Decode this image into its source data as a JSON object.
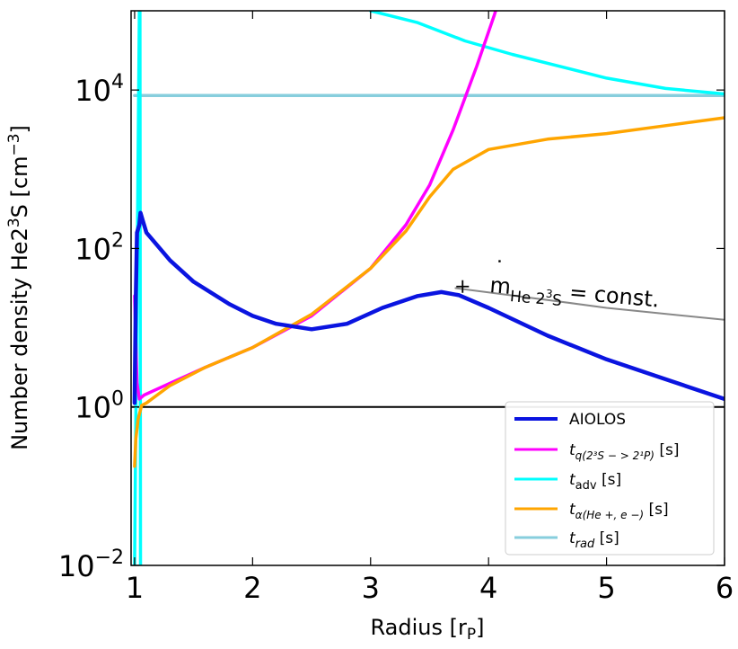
{
  "chart_data": {
    "type": "line",
    "xlabel": "Radius [r",
    "xlabel_sub": "P",
    "xlabel_end": "]",
    "ylabel": "Number density He2",
    "ylabel_sup": "3",
    "ylabel_mid": "S [cm",
    "ylabel_sup2": "−3",
    "ylabel_end": "]",
    "yscale": "log",
    "xlim": [
      0.97,
      6.0
    ],
    "ylim_log10": [
      -2,
      5
    ],
    "x_ticks": [
      {
        "value": 1,
        "label": "1"
      },
      {
        "value": 2,
        "label": "2"
      },
      {
        "value": 3,
        "label": "3"
      },
      {
        "value": 4,
        "label": "4"
      },
      {
        "value": 5,
        "label": "5"
      },
      {
        "value": 6,
        "label": "6"
      }
    ],
    "y_ticks": [
      {
        "exp": -2,
        "base": "10",
        "sup": "−2"
      },
      {
        "exp": 0,
        "base": "10",
        "sup": "0"
      },
      {
        "exp": 2,
        "base": "10",
        "sup": "2"
      },
      {
        "exp": 4,
        "base": "10",
        "sup": "4"
      }
    ],
    "reference_line": {
      "log10_y": 0,
      "color": "#000000"
    },
    "series": [
      {
        "name": "AIOLOS",
        "color": "#0a14e0",
        "width": 4.5,
        "points": [
          [
            1.0,
            0.05
          ],
          [
            1.01,
            1.4
          ],
          [
            1.02,
            2.2
          ],
          [
            1.04,
            2.3
          ],
          [
            1.05,
            2.45
          ],
          [
            1.07,
            2.35
          ],
          [
            1.1,
            2.2
          ],
          [
            1.3,
            1.85
          ],
          [
            1.5,
            1.58
          ],
          [
            1.8,
            1.3
          ],
          [
            2.0,
            1.15
          ],
          [
            2.2,
            1.05
          ],
          [
            2.5,
            0.98
          ],
          [
            2.8,
            1.05
          ],
          [
            3.1,
            1.25
          ],
          [
            3.4,
            1.4
          ],
          [
            3.6,
            1.45
          ],
          [
            3.75,
            1.41
          ],
          [
            4.0,
            1.25
          ],
          [
            4.5,
            0.9
          ],
          [
            5.0,
            0.6
          ],
          [
            5.5,
            0.35
          ],
          [
            5.8,
            0.2
          ],
          [
            6.0,
            0.1
          ]
        ]
      },
      {
        "name": "t_q(2^3S->2^1P) [s]",
        "color": "#ff00ff",
        "width": 3.5,
        "points": [
          [
            1.0,
            1.4
          ],
          [
            1.01,
            0.8
          ],
          [
            1.02,
            0.3
          ],
          [
            1.04,
            0.1
          ],
          [
            1.08,
            0.15
          ],
          [
            1.3,
            0.3
          ],
          [
            1.6,
            0.5
          ],
          [
            2.0,
            0.75
          ],
          [
            2.5,
            1.15
          ],
          [
            3.0,
            1.75
          ],
          [
            3.3,
            2.3
          ],
          [
            3.5,
            2.8
          ],
          [
            3.7,
            3.5
          ],
          [
            3.9,
            4.3
          ],
          [
            4.05,
            4.95
          ],
          [
            4.06,
            5.0
          ]
        ]
      },
      {
        "name": "t_adv [s]",
        "color": "#00ffff",
        "width": 3.5,
        "points": [
          [
            4.6,
            4.55
          ],
          [
            5.0,
            4.3
          ],
          [
            5.5,
            4.05
          ],
          [
            6.0,
            3.95
          ]
        ],
        "extra_segments": [
          [
            [
              1.04,
              5.0
            ],
            [
              1.0,
              -2.0
            ]
          ],
          [
            [
              1.045,
              5.0
            ],
            [
              1.05,
              -2.0
            ]
          ],
          [
            [
              3.0,
              5.0
            ],
            [
              3.4,
              4.85
            ],
            [
              3.8,
              4.62
            ],
            [
              4.2,
              4.45
            ],
            [
              4.6,
              4.3
            ],
            [
              5.0,
              4.15
            ],
            [
              5.5,
              4.02
            ],
            [
              6.0,
              3.95
            ]
          ]
        ]
      },
      {
        "name": "t_α(He+,e−) [s]",
        "color": "#ffa500",
        "width": 3.5,
        "points": [
          [
            1.0,
            -0.75
          ],
          [
            1.01,
            -0.4
          ],
          [
            1.03,
            -0.15
          ],
          [
            1.06,
            0.02
          ],
          [
            1.1,
            0.05
          ],
          [
            1.3,
            0.27
          ],
          [
            1.6,
            0.5
          ],
          [
            2.0,
            0.75
          ],
          [
            2.5,
            1.17
          ],
          [
            3.0,
            1.75
          ],
          [
            3.3,
            2.22
          ],
          [
            3.5,
            2.65
          ],
          [
            3.7,
            3.0
          ],
          [
            4.0,
            3.25
          ],
          [
            4.5,
            3.38
          ],
          [
            5.0,
            3.45
          ],
          [
            5.5,
            3.55
          ],
          [
            6.0,
            3.65
          ]
        ]
      },
      {
        "name": "t_rad [s]",
        "color": "#87cedd",
        "width": 3.5,
        "points": [
          [
            1.0,
            3.93
          ],
          [
            6.0,
            3.93
          ]
        ]
      },
      {
        "name": "const-line",
        "color": "#888888",
        "width": 2,
        "legend": false,
        "points": [
          [
            3.72,
            1.5
          ],
          [
            4.5,
            1.35
          ],
          [
            5.0,
            1.25
          ],
          [
            6.0,
            1.1
          ]
        ]
      }
    ],
    "marker": {
      "x": 3.78,
      "log10_y": 1.52,
      "symbol": "+"
    },
    "annotation": {
      "text_m": "m",
      "text_sub": "He 2",
      "text_sub_sup": "3",
      "text_sub_end": "S",
      "text_rest": " = const."
    },
    "legend": {
      "position": "lower-right",
      "entries": [
        {
          "key": "aiolos",
          "text": "AIOLOS",
          "color": "#0a14e0"
        },
        {
          "key": "tq",
          "text": "t",
          "sub": "q(2³S − > 2¹P)",
          "tail": " [s]",
          "color": "#ff00ff"
        },
        {
          "key": "tadv",
          "text": "t",
          "sub": "adv",
          "tail": " [s]",
          "color": "#00ffff"
        },
        {
          "key": "talpha",
          "text": "t",
          "sub": "α(He +, e −)",
          "tail": " [s]",
          "color": "#ffa500"
        },
        {
          "key": "trad",
          "text": "t",
          "sub": "rad",
          "tail": " [s]",
          "color": "#87cedd"
        }
      ]
    }
  }
}
